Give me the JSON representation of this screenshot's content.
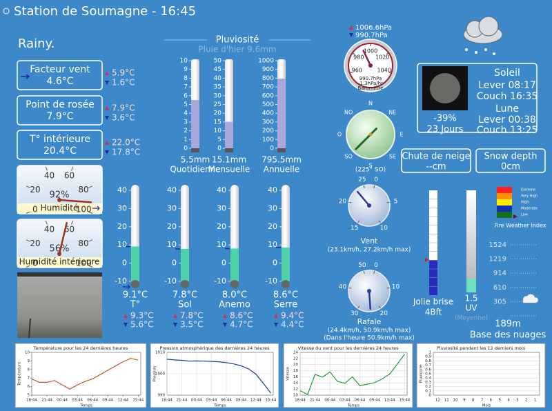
{
  "header": {
    "title": "Station de Soumagne - 16:45",
    "condition": "Rainy."
  },
  "panels": [
    {
      "label": "Facteur vent",
      "value": "4.6°C",
      "max": "5.9°C",
      "min": "1.6°C"
    },
    {
      "label": "Point de rosée",
      "value": "7.9°C",
      "max": "7.9°C",
      "min": "3.6°C"
    },
    {
      "label": "T° intérieure",
      "value": "20.4°C",
      "max": "22.0°C",
      "min": "17.8°C"
    }
  ],
  "humidity": {
    "ticks": [
      0,
      20,
      40,
      60,
      80,
      100
    ],
    "lim": [
      0,
      100
    ],
    "gauges": [
      {
        "label": "Humidité",
        "value": 92,
        "value_label": "92%"
      },
      {
        "label": "Humidité intérieure",
        "value": 56,
        "value_label": "56%"
      }
    ]
  },
  "rain": {
    "title": "Pluviosité",
    "subtitle": "Pluie d'hier 9.6mm",
    "gauges": [
      {
        "label": "Quotidienne",
        "value": 5.5,
        "value_label": "5.5mm",
        "ylim": [
          0,
          10
        ],
        "yticks": [
          0,
          1,
          2,
          3,
          4,
          5,
          6,
          7,
          8,
          9,
          10
        ]
      },
      {
        "label": "Mensuelle",
        "value": 15.1,
        "value_label": "15.1mm",
        "ylim": [
          0,
          50
        ],
        "yticks": [
          0,
          5,
          10,
          15,
          20,
          25,
          30,
          35,
          40,
          45,
          50
        ]
      },
      {
        "label": "Annuelle",
        "value": 795.5,
        "value_label": "795.5mm",
        "ylim": [
          0,
          1000
        ],
        "yticks": [
          0,
          100,
          200,
          300,
          400,
          500,
          600,
          700,
          800,
          900,
          1000
        ]
      }
    ]
  },
  "temperature": {
    "ylim": [
      -10,
      40
    ],
    "yticks": [
      -10,
      0,
      10,
      20,
      30,
      40
    ],
    "sensors": [
      {
        "label": "T°",
        "value": 9.1,
        "value_label": "9.1°C",
        "max": "9.3°C",
        "min": "5.6°C"
      },
      {
        "label": "Sol",
        "value": 7.8,
        "value_label": "7.8°C",
        "max": "7.8°C",
        "min": "3.5°C"
      },
      {
        "label": "Anemo",
        "value": 8.0,
        "value_label": "8.0°C",
        "max": "8.6°C",
        "min": "4.7°C"
      },
      {
        "label": "Serre",
        "value": 8.6,
        "value_label": "8.6°C",
        "max": "9.4°C",
        "min": "4.4°C"
      }
    ]
  },
  "barometer": {
    "max": "1006.6hPa",
    "min": "990.7hPa",
    "value": 990.7,
    "value_label": "990.7hPa",
    "trend": "-1.3hPa/hr",
    "label": "Baromètre",
    "lim": [
      960,
      1040
    ],
    "ticks": [
      960,
      980,
      1000,
      1020,
      1040
    ]
  },
  "compass": {
    "directions": [
      "N",
      "NE",
      "E",
      "SE",
      "S",
      "SO",
      "O",
      "NO"
    ],
    "bearing": 225,
    "label": "(225° SO)"
  },
  "wind": {
    "label": "Vent",
    "detail": "(23.1km/h, 27.2km/h max)",
    "value": 23.1,
    "lim": [
      0,
      25
    ],
    "ticks": [
      0,
      5,
      10,
      15,
      20,
      25
    ]
  },
  "gust": {
    "label": "Rafale",
    "detail": "(24.4km/h, 50.9km/h max)",
    "detail2": "(Dans l'heure 50.9km/h max)",
    "value": 24.4,
    "lim": [
      0,
      50
    ],
    "ticks": [
      0,
      10,
      20,
      30,
      40,
      50
    ]
  },
  "astro": {
    "moon_phase": "-39%",
    "moon_age": "23 Jours",
    "sun_title": "Soleil",
    "sunrise": "Lever 08:17",
    "sunset": "Couch 16:35",
    "moon_title": "Lune",
    "moonrise": "Lever 00:38",
    "moonset": "Couch 13:25"
  },
  "snow": [
    {
      "label": "Chute de neige",
      "value": "--cm"
    },
    {
      "label": "Snow depth",
      "value": "0cm"
    }
  ],
  "beaufort": {
    "label": "Jolie brise",
    "value": 4,
    "value_label": "4Bft",
    "ylim": [
      0,
      12
    ]
  },
  "uv": {
    "label": "UV",
    "value": 1.5,
    "note": "(Moyenne)",
    "ylim": [
      0,
      11
    ]
  },
  "fire": {
    "title": "Fire Weather Index",
    "levels": [
      {
        "label": "Extreme",
        "color": "#ff2020"
      },
      {
        "label": "Very High",
        "color": "#ff9000"
      },
      {
        "label": "High",
        "color": "#ffee00"
      },
      {
        "label": "Moderate",
        "color": "#1030b0"
      },
      {
        "label": "Low",
        "color": "#107020"
      }
    ]
  },
  "cloudbase": {
    "label": "Base des nuages",
    "value": 189,
    "value_label": "189m",
    "ylim": [
      0,
      1524
    ],
    "yticks": [
      305,
      610,
      914,
      1219,
      1524
    ]
  },
  "charts": [
    {
      "type": "line",
      "title": "Température pour les 24 dernières heures",
      "ylabel": "Température",
      "xlabel": "Temps",
      "color": "#c8501e",
      "grid": false,
      "x": [
        0,
        1.5,
        3,
        4.5,
        6,
        7.5,
        9,
        10.5,
        12,
        13.5,
        15,
        16.5,
        18,
        19.5,
        21
      ],
      "values": [
        6.9,
        6.5,
        6.5,
        6.7,
        6.2,
        5.7,
        6.2,
        6.6,
        6.9,
        7.4,
        7.9,
        8.4,
        8.9,
        9.3,
        9.1
      ],
      "xlim": [
        0,
        21.5
      ],
      "xticks": [
        {
          "value": 0,
          "label": "18:44"
        },
        {
          "value": 3,
          "label": "21:44"
        },
        {
          "value": 6,
          "label": "00:44"
        },
        {
          "value": 9,
          "label": "03:44"
        },
        {
          "value": 12,
          "label": "06:44"
        },
        {
          "value": 15,
          "label": "09:44"
        },
        {
          "value": 18,
          "label": "12:44"
        },
        {
          "value": 21,
          "label": "15:44"
        }
      ],
      "ylim": [
        5,
        10
      ],
      "yticks": [
        5,
        6,
        7,
        8,
        9,
        10
      ]
    },
    {
      "type": "line",
      "title": "Pression atmosphérique des dernières 24 heures",
      "ylabel": "Pression",
      "xlabel": "Temps",
      "color": "#1a3c9a",
      "grid": true,
      "x": [
        0,
        1.5,
        3,
        4.5,
        6,
        7.5,
        9,
        10.5,
        12,
        13.5,
        15,
        16.5,
        18,
        19.5,
        21
      ],
      "values": [
        1006.8,
        1006.5,
        1006.3,
        1005.9,
        1006.0,
        1005.9,
        1005.8,
        1005.6,
        1005.2,
        1004.6,
        1003.7,
        1002.3,
        999.8,
        995.5,
        991.0
      ],
      "xlim": [
        0,
        21.5
      ],
      "xticks": [
        {
          "value": 0,
          "label": "18:44"
        },
        {
          "value": 3,
          "label": "21:44"
        },
        {
          "value": 6,
          "label": "00:44"
        },
        {
          "value": 9,
          "label": "03:44"
        },
        {
          "value": 12,
          "label": "06:44"
        },
        {
          "value": 15,
          "label": "09:44"
        },
        {
          "value": 18,
          "label": "12:44"
        },
        {
          "value": 21,
          "label": "15:44"
        }
      ],
      "ylim": [
        990,
        1010
      ],
      "yticks": [
        990,
        1000,
        1010
      ]
    },
    {
      "type": "line",
      "title": "Vitesse du vent pour les dernières 24 heures",
      "ylabel": "Vitesse",
      "xlabel": "Temps",
      "color": "#1e9a3a",
      "grid": true,
      "x": [
        0,
        1.5,
        3,
        4.5,
        6,
        7.5,
        9,
        10.5,
        12,
        13.5,
        15,
        16.5,
        18,
        19.5,
        21
      ],
      "values": [
        11.5,
        10.2,
        16.8,
        15.9,
        17.6,
        14.5,
        13.9,
        16.0,
        13.1,
        13.6,
        14.1,
        15.3,
        16.9,
        20.1,
        23.4
      ],
      "xlim": [
        0,
        21.5
      ],
      "xticks": [
        {
          "value": 0,
          "label": "18:44"
        },
        {
          "value": 3,
          "label": "21:44"
        },
        {
          "value": 6,
          "label": "00:44"
        },
        {
          "value": 9,
          "label": "03:44"
        },
        {
          "value": 12,
          "label": "06:44"
        },
        {
          "value": 15,
          "label": "09:44"
        },
        {
          "value": 18,
          "label": "12:44"
        },
        {
          "value": 21,
          "label": "15:44"
        }
      ],
      "ylim": [
        10,
        24
      ],
      "yticks": [
        10,
        12,
        14,
        16,
        18,
        20,
        22,
        24
      ]
    },
    {
      "type": "bar",
      "title": "Pluviosité pendant les 12 derniers mois",
      "ylabel": "Pluviosité",
      "xlabel": "Mois",
      "color": "#4a6ad0",
      "grid": true,
      "categories": [
        "12",
        "11",
        "10",
        "9",
        "8",
        "7",
        "6",
        "5",
        "4",
        "3",
        "2",
        "1"
      ],
      "values": [
        0,
        0,
        0,
        0,
        0,
        0,
        0,
        0,
        0,
        0,
        0,
        0
      ],
      "ylim": [
        0,
        1
      ],
      "yticks": [
        0,
        0.1,
        0.2,
        0.3,
        0.4,
        0.5,
        0.6,
        0.7,
        0.8,
        0.9,
        1
      ]
    }
  ]
}
